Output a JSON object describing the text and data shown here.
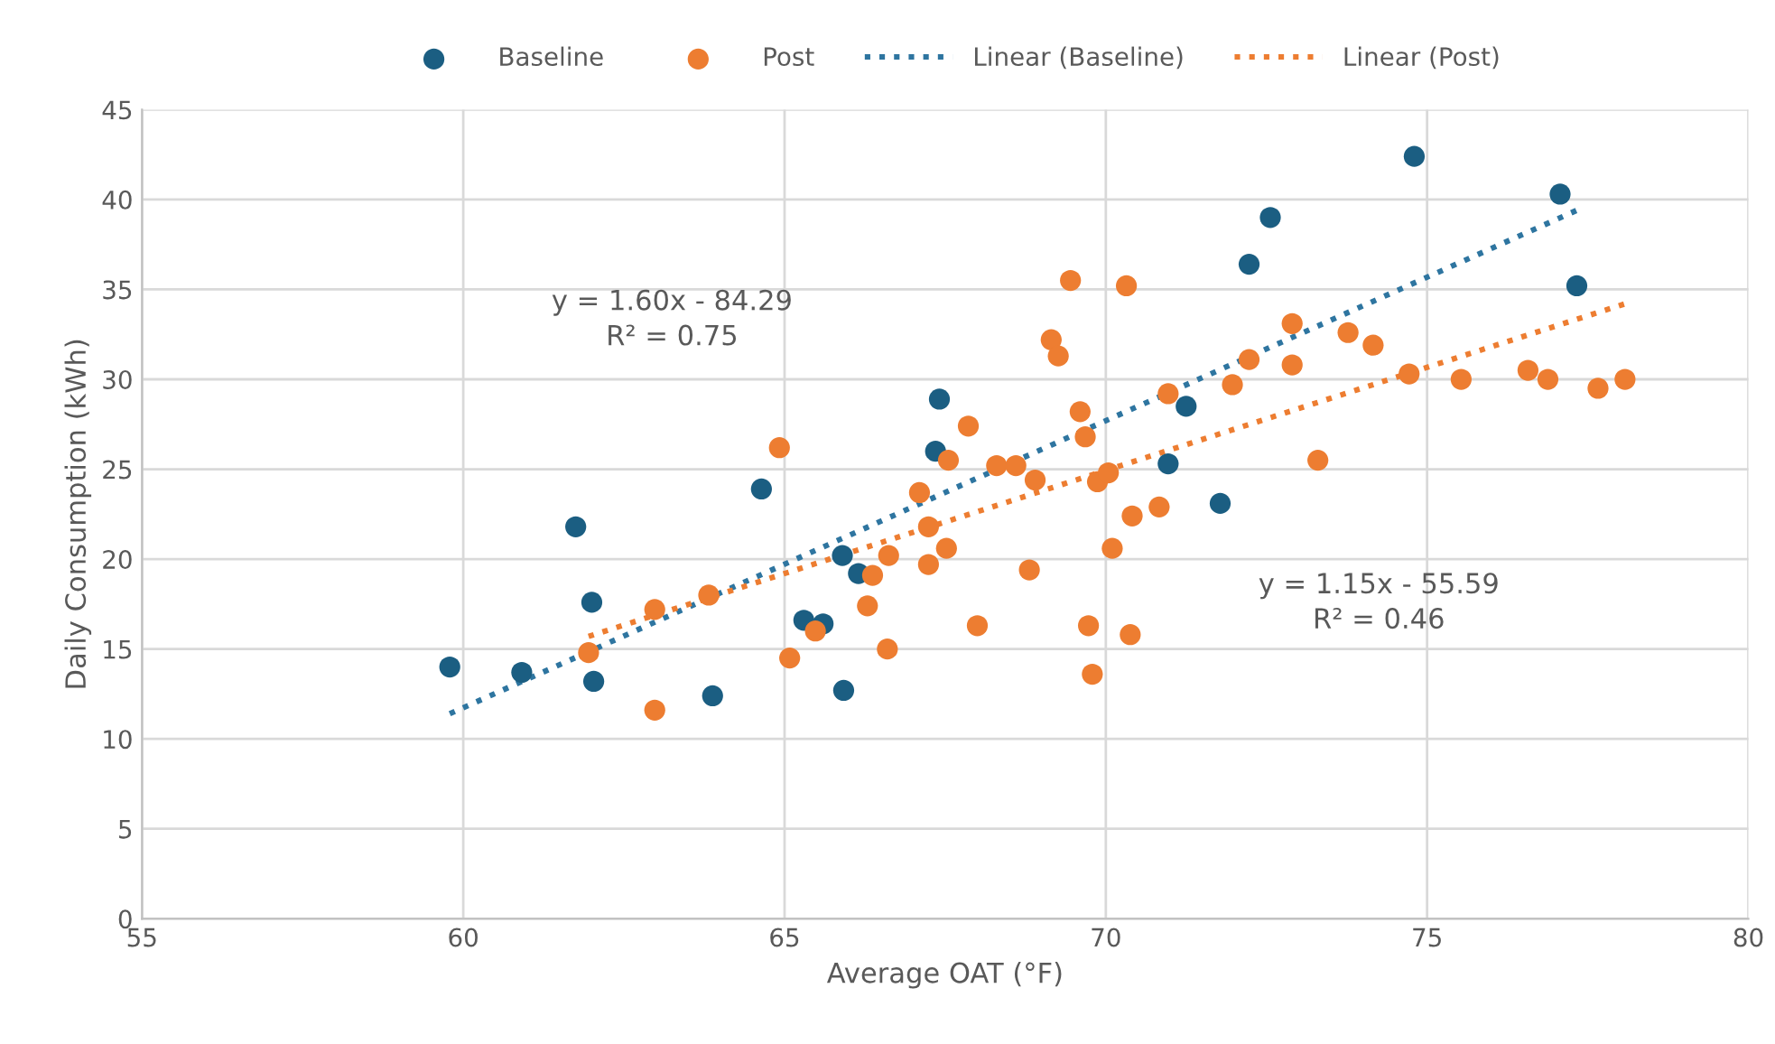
{
  "chart_data": {
    "type": "scatter",
    "xlabel": "Average OAT (°F)",
    "ylabel": "Daily Consumption (kWh)",
    "xlim": [
      55,
      80
    ],
    "xticks": [
      55,
      60,
      65,
      70,
      75,
      80
    ],
    "ylim": [
      0,
      45
    ],
    "yticks": [
      0,
      5,
      10,
      15,
      20,
      25,
      30,
      35,
      40,
      45
    ],
    "grid": true,
    "legend": "top",
    "marker": "circle",
    "annotations": [
      "y = 1.60x - 84.29\nR² = 0.75",
      "y = 1.15x - 55.59\nR² = 0.46"
    ],
    "series": [
      {
        "name": "Baseline",
        "color": "#1b5e82",
        "x": [
          59.79,
          60.91,
          61.75,
          62.0,
          62.03,
          63.88,
          64.64,
          65.3,
          65.6,
          65.9,
          66.15,
          65.92,
          67.41,
          67.35,
          71.25,
          70.97,
          71.78,
          72.23,
          72.56,
          74.8,
          77.07,
          77.33
        ],
        "values": [
          14.0,
          13.7,
          21.8,
          17.6,
          13.2,
          12.4,
          23.9,
          16.6,
          16.4,
          20.2,
          19.2,
          12.7,
          28.9,
          26.0,
          28.5,
          25.3,
          23.1,
          36.4,
          39.0,
          42.4,
          40.3,
          35.2
        ]
      },
      {
        "name": "Post",
        "color": "#ed7d31",
        "x": [
          61.95,
          62.98,
          62.98,
          63.82,
          65.08,
          65.48,
          66.29,
          66.37,
          66.62,
          66.6,
          64.92,
          69.45,
          70.32,
          69.15,
          69.26,
          67.86,
          69.6,
          69.68,
          67.55,
          68.3,
          68.6,
          68.9,
          67.1,
          69.87,
          70.04,
          67.24,
          67.52,
          67.24,
          68.0,
          68.81,
          70.1,
          70.41,
          70.83,
          69.73,
          70.38,
          69.79,
          70.97,
          71.97,
          72.23,
          72.9,
          72.9,
          73.3,
          73.77,
          74.16,
          74.72,
          75.53,
          76.57,
          76.88,
          77.66,
          78.08
        ],
        "values": [
          14.8,
          17.2,
          11.6,
          18.0,
          14.5,
          16.0,
          17.4,
          19.1,
          20.2,
          15.0,
          26.2,
          35.5,
          35.2,
          32.2,
          31.3,
          27.4,
          28.2,
          26.8,
          25.5,
          25.2,
          25.2,
          24.4,
          23.7,
          24.3,
          24.8,
          21.8,
          20.6,
          19.7,
          16.3,
          19.4,
          20.6,
          22.4,
          22.9,
          16.3,
          15.8,
          13.6,
          29.2,
          29.7,
          31.1,
          33.1,
          30.8,
          25.5,
          32.6,
          31.9,
          30.3,
          30.0,
          30.5,
          30.0,
          29.5,
          30.0
        ]
      },
      {
        "name": "Linear (Baseline)",
        "type": "line",
        "line_style": "dotted",
        "marker": "none",
        "color": "#2e75a0",
        "x": [
          59.79,
          77.33
        ],
        "values": [
          11.4,
          39.4
        ]
      },
      {
        "name": "Linear (Post)",
        "type": "line",
        "line_style": "dotted",
        "marker": "none",
        "color": "#ed7d31",
        "x": [
          61.95,
          78.08
        ],
        "values": [
          15.7,
          34.2
        ]
      }
    ]
  }
}
